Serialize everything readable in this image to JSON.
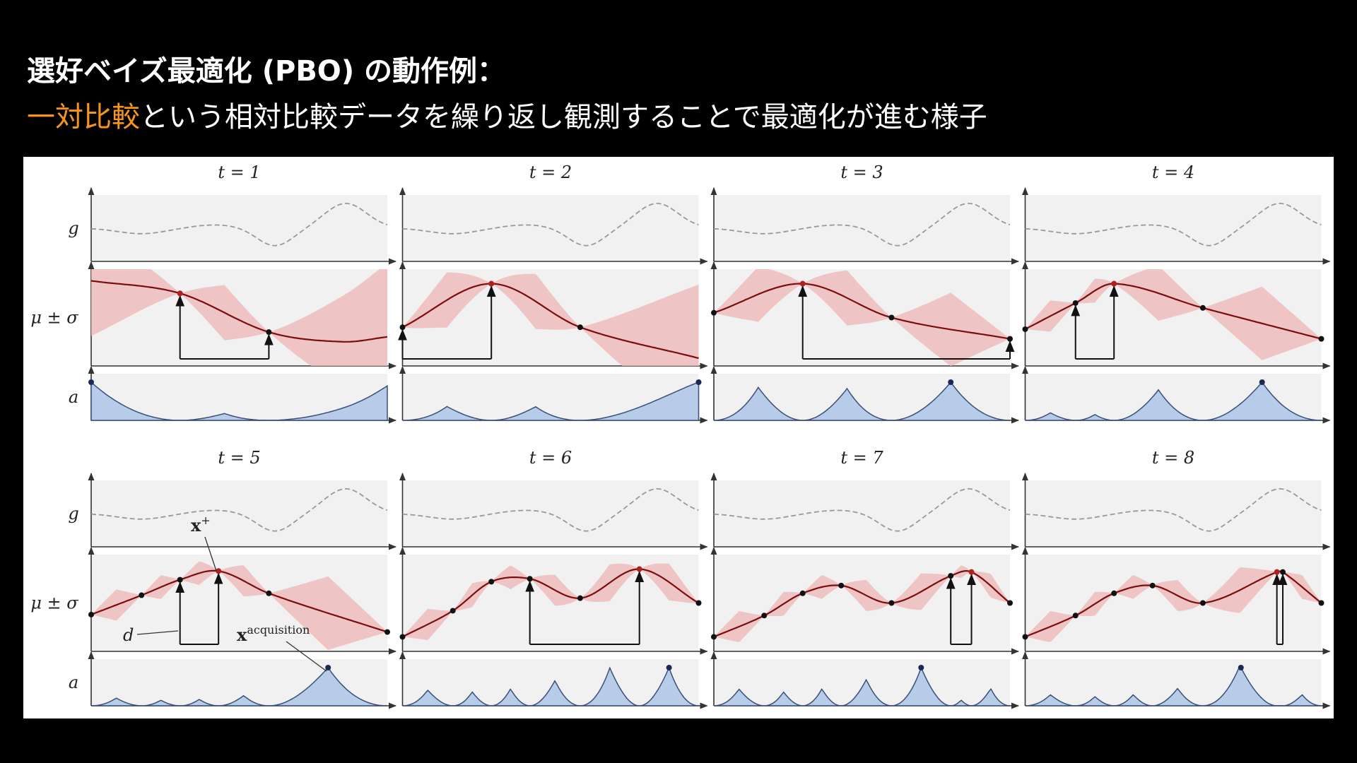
{
  "header": {
    "title": "選好ベイズ最適化 (PBO) の動作例：",
    "subtitle_highlight": "一対比較",
    "subtitle_rest": "という相対比較データを繰り返し観測することで最適化が進む様子"
  },
  "figure": {
    "panels": [
      {
        "title": "t = 1"
      },
      {
        "title": "t = 2"
      },
      {
        "title": "t = 3"
      },
      {
        "title": "t = 4"
      },
      {
        "title": "t = 5"
      },
      {
        "title": "t = 6"
      },
      {
        "title": "t = 7"
      },
      {
        "title": "t = 8"
      }
    ],
    "row_labels": [
      "g",
      "μ ± σ",
      "a"
    ],
    "annotations": {
      "x_plus": {
        "base": "x",
        "sup": "+"
      },
      "d": "d",
      "x_acquisition": {
        "base": "x",
        "sup": "acquisition"
      }
    }
  }
}
